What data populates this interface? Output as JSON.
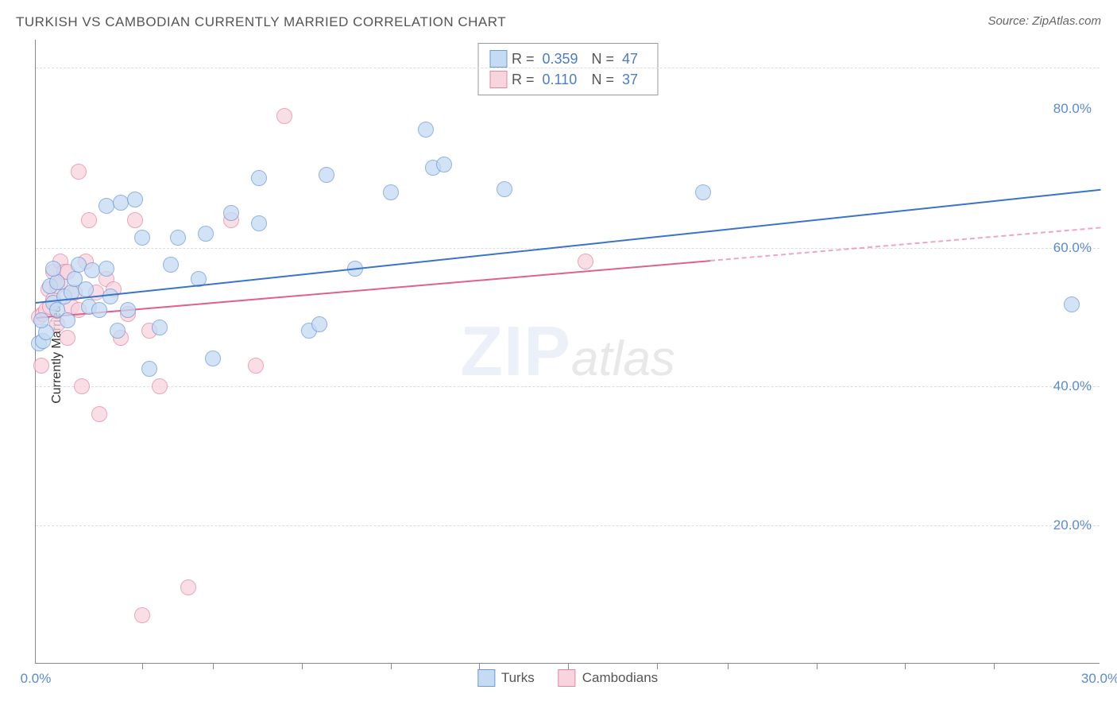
{
  "title": "TURKISH VS CAMBODIAN CURRENTLY MARRIED CORRELATION CHART",
  "source": "Source: ZipAtlas.com",
  "ylabel": "Currently Married",
  "chart": {
    "type": "scatter",
    "xlim": [
      0.0,
      30.0
    ],
    "ylim": [
      0.0,
      90.0
    ],
    "xtick_labels": [
      "0.0%",
      "30.0%"
    ],
    "xtick_positions": [
      0,
      30
    ],
    "xtick_minor": [
      3,
      5,
      7.5,
      10,
      12.5,
      15,
      17.5,
      19.5,
      22,
      24.5,
      27
    ],
    "ytick_labels": [
      "20.0%",
      "40.0%",
      "60.0%",
      "80.0%"
    ],
    "ytick_positions": [
      20,
      40,
      60,
      80
    ],
    "tick_color": "#5a8bd0",
    "grid_color": "#dddddd",
    "background_color": "#ffffff",
    "axis_color": "#888888",
    "gridlines_y": [
      20,
      40,
      60,
      86
    ],
    "label_fontsize": 17
  },
  "series": {
    "turks": {
      "label": "Turks",
      "fill": "#c5daf3",
      "stroke": "#6d9ad8",
      "fill_opacity": 0.75,
      "marker_r": 10,
      "R": "0.359",
      "N": "47",
      "trend": {
        "x0": 0,
        "y0": 52.2,
        "x1": 30,
        "y1": 68.5,
        "color": "#3a74c8",
        "dash_from": null
      },
      "points": [
        [
          0.1,
          46.2
        ],
        [
          0.2,
          46.5
        ],
        [
          0.3,
          47.8
        ],
        [
          0.15,
          49.5
        ],
        [
          0.4,
          54.5
        ],
        [
          0.5,
          52.0
        ],
        [
          0.6,
          51.0
        ],
        [
          0.6,
          55.0
        ],
        [
          0.8,
          53.0
        ],
        [
          0.5,
          57.0
        ],
        [
          0.9,
          49.5
        ],
        [
          1.0,
          53.5
        ],
        [
          1.1,
          55.5
        ],
        [
          1.2,
          57.5
        ],
        [
          1.4,
          54.0
        ],
        [
          1.5,
          51.5
        ],
        [
          1.8,
          51.0
        ],
        [
          1.6,
          56.7
        ],
        [
          2.0,
          57.0
        ],
        [
          2.1,
          53.0
        ],
        [
          2.0,
          66.0
        ],
        [
          2.3,
          48.0
        ],
        [
          2.4,
          66.5
        ],
        [
          2.6,
          51.0
        ],
        [
          2.8,
          67.0
        ],
        [
          3.0,
          61.5
        ],
        [
          3.2,
          42.5
        ],
        [
          3.5,
          48.5
        ],
        [
          3.8,
          57.5
        ],
        [
          4.0,
          61.5
        ],
        [
          4.6,
          55.5
        ],
        [
          4.8,
          62.0
        ],
        [
          5.5,
          65.0
        ],
        [
          6.3,
          70.0
        ],
        [
          6.3,
          63.5
        ],
        [
          5.0,
          44.0
        ],
        [
          7.7,
          48.0
        ],
        [
          8.0,
          49.0
        ],
        [
          8.2,
          70.5
        ],
        [
          9.0,
          57.0
        ],
        [
          10.0,
          68.0
        ],
        [
          11.0,
          77.0
        ],
        [
          11.2,
          71.5
        ],
        [
          11.5,
          72.0
        ],
        [
          13.2,
          68.5
        ],
        [
          18.8,
          68.0
        ],
        [
          29.2,
          51.8
        ]
      ]
    },
    "cambodians": {
      "label": "Cambodians",
      "fill": "#f8d4de",
      "stroke": "#e487a3",
      "fill_opacity": 0.75,
      "marker_r": 10,
      "R": "0.110",
      "N": "37",
      "trend": {
        "x0": 0,
        "y0": 50.0,
        "x1": 30,
        "y1": 63.0,
        "color": "#e06090",
        "dash_from": 19.0
      },
      "points": [
        [
          0.1,
          50.0
        ],
        [
          0.2,
          50.5
        ],
        [
          0.3,
          51.0
        ],
        [
          0.15,
          43.0
        ],
        [
          0.4,
          51.5
        ],
        [
          0.35,
          54.0
        ],
        [
          0.5,
          52.5
        ],
        [
          0.5,
          56.5
        ],
        [
          0.6,
          54.5
        ],
        [
          0.6,
          49.0
        ],
        [
          0.7,
          55.0
        ],
        [
          0.7,
          58.0
        ],
        [
          0.8,
          56.5
        ],
        [
          0.9,
          56.5
        ],
        [
          0.9,
          47.0
        ],
        [
          1.0,
          51.5
        ],
        [
          1.1,
          53.5
        ],
        [
          1.2,
          71.0
        ],
        [
          1.2,
          51.0
        ],
        [
          1.3,
          40.0
        ],
        [
          1.4,
          58.0
        ],
        [
          1.5,
          64.0
        ],
        [
          1.7,
          53.5
        ],
        [
          1.8,
          36.0
        ],
        [
          2.0,
          55.5
        ],
        [
          2.2,
          54.0
        ],
        [
          2.4,
          47.0
        ],
        [
          2.6,
          50.5
        ],
        [
          2.8,
          64.0
        ],
        [
          3.0,
          7.0
        ],
        [
          3.2,
          48.0
        ],
        [
          3.5,
          40.0
        ],
        [
          4.3,
          11.0
        ],
        [
          5.5,
          64.0
        ],
        [
          6.2,
          43.0
        ],
        [
          7.0,
          79.0
        ],
        [
          15.5,
          58.0
        ]
      ]
    }
  },
  "legend_top": {
    "R_label": "R =",
    "N_label": "N ="
  },
  "watermark": {
    "zip": "ZIP",
    "atlas": "atlas"
  }
}
